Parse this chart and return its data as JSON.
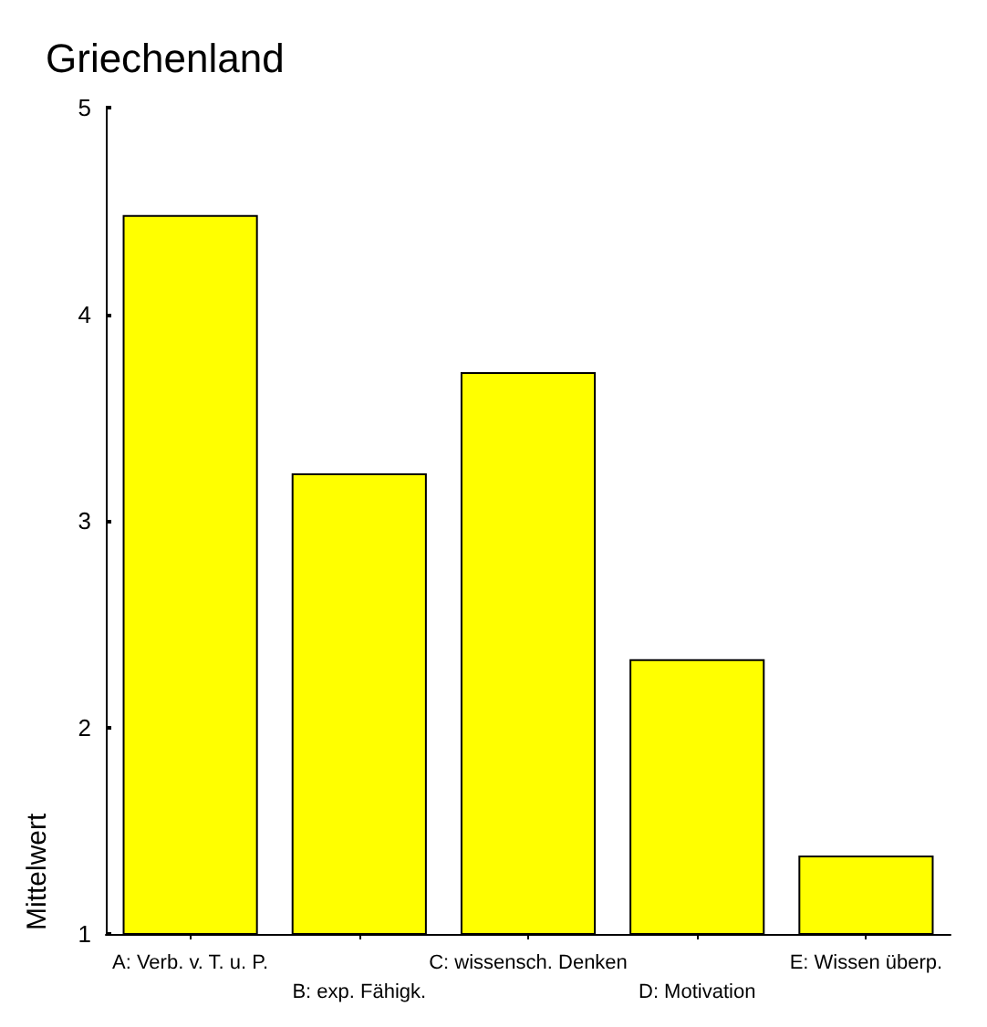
{
  "chart_data": {
    "type": "bar",
    "title": "Griechenland",
    "ylabel": "Mittelwert",
    "categories": [
      "A: Verb. v. T. u. P.",
      "B: exp. Fähigk.",
      "C: wissensch. Denken",
      "D: Motivation",
      "E: Wissen überp."
    ],
    "values": [
      4.48,
      3.23,
      3.72,
      2.33,
      1.38
    ],
    "color": "#ffff00",
    "ylim": [
      1,
      5
    ],
    "yticks": [
      1,
      2,
      3,
      4,
      5
    ],
    "grid": false
  }
}
